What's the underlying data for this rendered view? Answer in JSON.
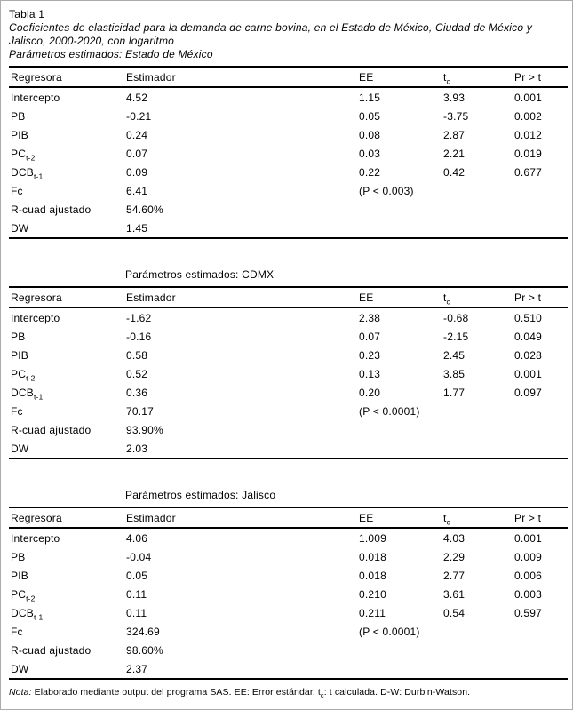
{
  "title": "Tabla 1",
  "subtitle": "Coeficientes de elasticidad para la demanda de carne bovina, en el Estado de México, Ciudad de México y Jalisco, 2000-2020, con logaritmo",
  "columns": [
    {
      "id": "regresora",
      "label": "Regresora"
    },
    {
      "id": "estimador",
      "label": "Estimador"
    },
    {
      "id": "ee",
      "label": "EE"
    },
    {
      "id": "tc",
      "label": "t",
      "sub": "c"
    },
    {
      "id": "pr",
      "label": "Pr > t"
    }
  ],
  "tables": [
    {
      "caption": "Parámetros estimados: Estado de México",
      "rows": [
        [
          {
            "t": "Intercepto"
          },
          {
            "t": "4.52"
          },
          {
            "t": "1.15"
          },
          {
            "t": "3.93"
          },
          {
            "t": "0.001"
          }
        ],
        [
          {
            "t": "PB"
          },
          {
            "t": "-0.21"
          },
          {
            "t": "0.05"
          },
          {
            "t": "-3.75"
          },
          {
            "t": "0.002"
          }
        ],
        [
          {
            "t": "PIB"
          },
          {
            "t": "0.24"
          },
          {
            "t": "0.08"
          },
          {
            "t": "2.87"
          },
          {
            "t": "0.012"
          }
        ],
        [
          {
            "t": "PC",
            "s": "t-2"
          },
          {
            "t": "0.07"
          },
          {
            "t": "0.03"
          },
          {
            "t": "2.21"
          },
          {
            "t": "0.019"
          }
        ],
        [
          {
            "t": "DCB",
            "s": "t-1"
          },
          {
            "t": "0.09"
          },
          {
            "t": "0.22"
          },
          {
            "t": "0.42"
          },
          {
            "t": "0.677"
          }
        ],
        [
          {
            "t": "Fc"
          },
          {
            "t": "6.41"
          },
          {
            "t": "(P < 0.003)"
          },
          {
            "t": ""
          },
          {
            "t": ""
          }
        ],
        [
          {
            "t": "R-cuad ajustado"
          },
          {
            "t": "54.60%"
          },
          {
            "t": ""
          },
          {
            "t": ""
          },
          {
            "t": ""
          }
        ],
        [
          {
            "t": "DW"
          },
          {
            "t": "1.45"
          },
          {
            "t": ""
          },
          {
            "t": ""
          },
          {
            "t": ""
          }
        ]
      ]
    },
    {
      "caption": "Parámetros estimados: CDMX",
      "rows": [
        [
          {
            "t": "Intercepto"
          },
          {
            "t": "-1.62"
          },
          {
            "t": "2.38"
          },
          {
            "t": "-0.68"
          },
          {
            "t": "0.510"
          }
        ],
        [
          {
            "t": "PB"
          },
          {
            "t": "-0.16"
          },
          {
            "t": "0.07"
          },
          {
            "t": "-2.15"
          },
          {
            "t": "0.049"
          }
        ],
        [
          {
            "t": "PIB"
          },
          {
            "t": "0.58"
          },
          {
            "t": "0.23"
          },
          {
            "t": "2.45"
          },
          {
            "t": "0.028"
          }
        ],
        [
          {
            "t": "PC",
            "s": "t-2"
          },
          {
            "t": "0.52"
          },
          {
            "t": "0.13"
          },
          {
            "t": "3.85"
          },
          {
            "t": "0.001"
          }
        ],
        [
          {
            "t": "DCB",
            "s": "t-1"
          },
          {
            "t": "0.36"
          },
          {
            "t": "0.20"
          },
          {
            "t": "1.77"
          },
          {
            "t": "0.097"
          }
        ],
        [
          {
            "t": "Fc"
          },
          {
            "t": "70.17"
          },
          {
            "t": "(P < 0.0001)"
          },
          {
            "t": ""
          },
          {
            "t": ""
          }
        ],
        [
          {
            "t": "R-cuad ajustado"
          },
          {
            "t": "93.90%"
          },
          {
            "t": ""
          },
          {
            "t": ""
          },
          {
            "t": ""
          }
        ],
        [
          {
            "t": "DW"
          },
          {
            "t": "2.03"
          },
          {
            "t": ""
          },
          {
            "t": ""
          },
          {
            "t": ""
          }
        ]
      ]
    },
    {
      "caption": "Parámetros estimados: Jalisco",
      "rows": [
        [
          {
            "t": "Intercepto"
          },
          {
            "t": "4.06"
          },
          {
            "t": "1.009"
          },
          {
            "t": "4.03"
          },
          {
            "t": "0.001"
          }
        ],
        [
          {
            "t": "PB"
          },
          {
            "t": "-0.04"
          },
          {
            "t": "0.018"
          },
          {
            "t": "2.29"
          },
          {
            "t": "0.009"
          }
        ],
        [
          {
            "t": "PIB"
          },
          {
            "t": "0.05"
          },
          {
            "t": "0.018"
          },
          {
            "t": "2.77"
          },
          {
            "t": "0.006"
          }
        ],
        [
          {
            "t": "PC",
            "s": "t-2"
          },
          {
            "t": "0.11"
          },
          {
            "t": "0.210"
          },
          {
            "t": "3.61"
          },
          {
            "t": "0.003"
          }
        ],
        [
          {
            "t": "DCB",
            "s": "t-1"
          },
          {
            "t": "0.11"
          },
          {
            "t": "0.211"
          },
          {
            "t": "0.54"
          },
          {
            "t": "0.597"
          }
        ],
        [
          {
            "t": "Fc"
          },
          {
            "t": "324.69"
          },
          {
            "t": "(P < 0.0001)"
          },
          {
            "t": ""
          },
          {
            "t": ""
          }
        ],
        [
          {
            "t": "R-cuad ajustado"
          },
          {
            "t": "98.60%"
          },
          {
            "t": ""
          },
          {
            "t": ""
          },
          {
            "t": ""
          }
        ],
        [
          {
            "t": "DW"
          },
          {
            "t": "2.37"
          },
          {
            "t": ""
          },
          {
            "t": ""
          },
          {
            "t": ""
          }
        ]
      ]
    }
  ],
  "note": {
    "label": "Nota:",
    "part1": " Elaborado mediante output del programa SAS. EE: Error estándar. t",
    "sub": "c",
    "part2": ": t calculada. D-W: Durbin-Watson."
  }
}
